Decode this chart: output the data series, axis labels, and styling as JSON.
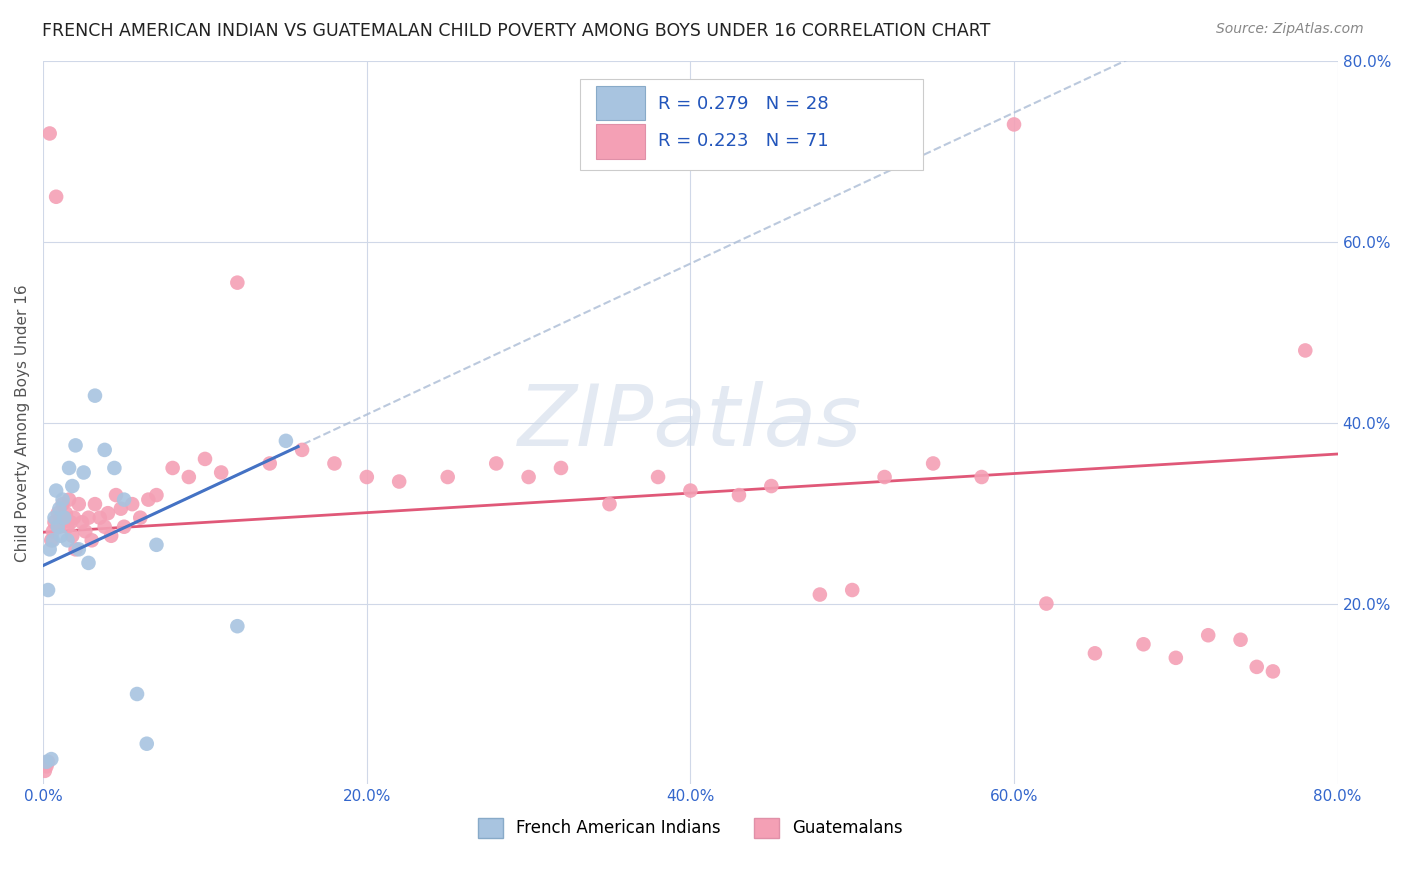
{
  "title": "FRENCH AMERICAN INDIAN VS GUATEMALAN CHILD POVERTY AMONG BOYS UNDER 16 CORRELATION CHART",
  "source": "Source: ZipAtlas.com",
  "ylabel": "Child Poverty Among Boys Under 16",
  "xlim": [
    0,
    0.8
  ],
  "ylim": [
    0,
    0.8
  ],
  "xticks": [
    0.0,
    0.2,
    0.4,
    0.6,
    0.8
  ],
  "yticks": [
    0.2,
    0.4,
    0.6,
    0.8
  ],
  "xticklabels": [
    "0.0%",
    "20.0%",
    "40.0%",
    "60.0%",
    "80.0%"
  ],
  "yticklabels": [
    "20.0%",
    "40.0%",
    "60.0%",
    "80.0%"
  ],
  "legend_label1": "French American Indians",
  "legend_label2": "Guatemalans",
  "R1": 0.279,
  "N1": 28,
  "R2": 0.223,
  "N2": 71,
  "color1": "#a8c4e0",
  "color2": "#f4a0b5",
  "line_color1_solid": "#4472c4",
  "line_color1_dashed": "#b0c0d8",
  "line_color2": "#e05878",
  "watermark": "ZIPatlas",
  "background_color": "#ffffff",
  "grid_color": "#d0d8e8",
  "french_x": [
    0.002,
    0.003,
    0.004,
    0.005,
    0.006,
    0.007,
    0.008,
    0.009,
    0.01,
    0.011,
    0.012,
    0.013,
    0.015,
    0.016,
    0.018,
    0.02,
    0.022,
    0.025,
    0.028,
    0.032,
    0.038,
    0.044,
    0.05,
    0.058,
    0.064,
    0.07,
    0.12,
    0.15
  ],
  "french_y": [
    0.025,
    0.215,
    0.26,
    0.028,
    0.27,
    0.295,
    0.325,
    0.285,
    0.305,
    0.275,
    0.315,
    0.295,
    0.27,
    0.35,
    0.33,
    0.375,
    0.26,
    0.345,
    0.245,
    0.43,
    0.37,
    0.35,
    0.315,
    0.1,
    0.045,
    0.265,
    0.175,
    0.38
  ],
  "guatemalan_x": [
    0.001,
    0.002,
    0.003,
    0.004,
    0.005,
    0.006,
    0.007,
    0.008,
    0.009,
    0.01,
    0.011,
    0.012,
    0.013,
    0.014,
    0.015,
    0.016,
    0.017,
    0.018,
    0.019,
    0.02,
    0.022,
    0.024,
    0.026,
    0.028,
    0.03,
    0.032,
    0.035,
    0.038,
    0.04,
    0.042,
    0.045,
    0.048,
    0.05,
    0.055,
    0.06,
    0.065,
    0.07,
    0.08,
    0.09,
    0.1,
    0.11,
    0.12,
    0.14,
    0.16,
    0.18,
    0.2,
    0.22,
    0.25,
    0.28,
    0.3,
    0.32,
    0.35,
    0.38,
    0.4,
    0.43,
    0.45,
    0.48,
    0.5,
    0.52,
    0.55,
    0.58,
    0.6,
    0.62,
    0.65,
    0.68,
    0.7,
    0.72,
    0.74,
    0.75,
    0.76,
    0.78
  ],
  "guatemalan_y": [
    0.015,
    0.02,
    0.025,
    0.72,
    0.27,
    0.28,
    0.29,
    0.65,
    0.3,
    0.285,
    0.295,
    0.31,
    0.295,
    0.3,
    0.285,
    0.315,
    0.29,
    0.275,
    0.295,
    0.26,
    0.31,
    0.29,
    0.28,
    0.295,
    0.27,
    0.31,
    0.295,
    0.285,
    0.3,
    0.275,
    0.32,
    0.305,
    0.285,
    0.31,
    0.295,
    0.315,
    0.32,
    0.35,
    0.34,
    0.36,
    0.345,
    0.555,
    0.355,
    0.37,
    0.355,
    0.34,
    0.335,
    0.34,
    0.355,
    0.34,
    0.35,
    0.31,
    0.34,
    0.325,
    0.32,
    0.33,
    0.21,
    0.215,
    0.34,
    0.355,
    0.34,
    0.73,
    0.2,
    0.145,
    0.155,
    0.14,
    0.165,
    0.16,
    0.13,
    0.125,
    0.48
  ]
}
